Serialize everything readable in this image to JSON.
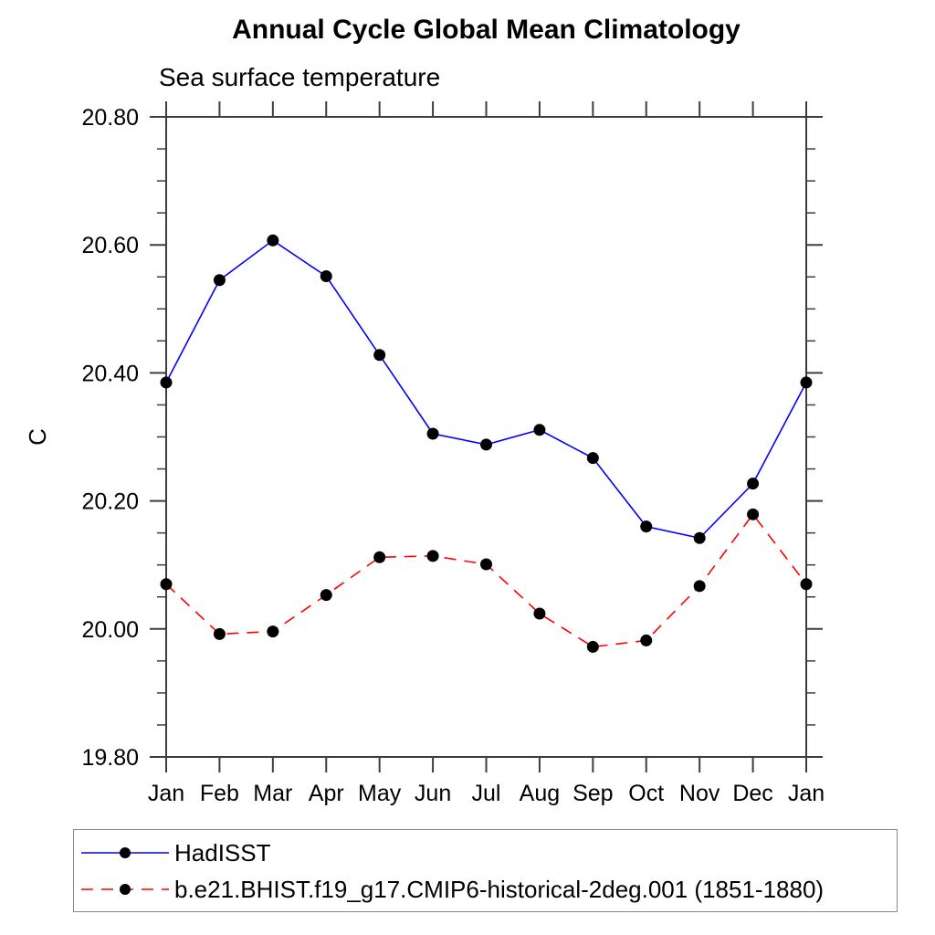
{
  "chart_data": {
    "type": "line",
    "title": "Annual Cycle Global Mean Climatology",
    "subtitle": "Sea surface temperature",
    "xlabel": "",
    "ylabel": "C",
    "categories": [
      "Jan",
      "Feb",
      "Mar",
      "Apr",
      "May",
      "Jun",
      "Jul",
      "Aug",
      "Sep",
      "Oct",
      "Nov",
      "Dec",
      "Jan"
    ],
    "series": [
      {
        "name": "HadISST",
        "color": "#0000ff",
        "style": "solid",
        "marker": "circle",
        "marker_color": "#000000",
        "values": [
          20.385,
          20.545,
          20.607,
          20.551,
          20.428,
          20.305,
          20.288,
          20.311,
          20.267,
          20.16,
          20.142,
          20.227,
          20.385
        ]
      },
      {
        "name": "b.e21.BHIST.f19_g17.CMIP6-historical-2deg.001 (1851-1880)",
        "color": "#ff0000",
        "style": "dashed",
        "marker": "circle",
        "marker_color": "#000000",
        "values": [
          20.07,
          19.992,
          19.996,
          20.053,
          20.112,
          20.114,
          20.101,
          20.024,
          19.972,
          19.982,
          20.067,
          20.179,
          20.07
        ]
      }
    ],
    "ylim": [
      19.8,
      20.8
    ],
    "ytick_major": [
      19.8,
      20.0,
      20.2,
      20.4,
      20.6,
      20.8
    ],
    "ytick_minor_step": 0.05,
    "ytick_label_format": "2dp",
    "grid": false,
    "legend_position": "bottom",
    "axis_color": "#3d3d3d",
    "text_color": "#000000"
  }
}
